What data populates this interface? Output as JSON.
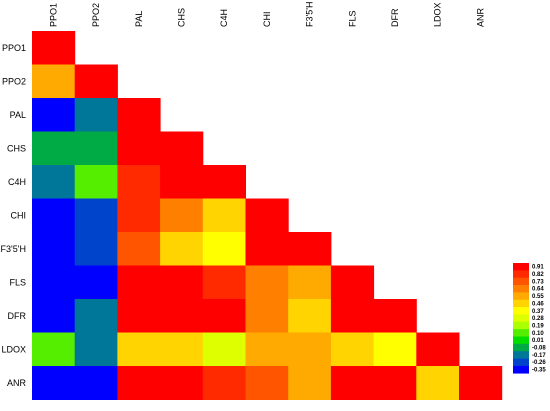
{
  "chart_data": {
    "type": "heatmap",
    "title": "",
    "xlabel": "",
    "ylabel": "",
    "shape": "lower-triangle",
    "grid": false,
    "legend_position": "bottom-right",
    "genes": [
      "PPO1",
      "PPO2",
      "PAL",
      "CHS",
      "C4H",
      "CHI",
      "F3'5'H",
      "FLS",
      "DFR",
      "LDOX",
      "ANR"
    ],
    "matrix": [
      [
        0.91
      ],
      [
        0.55,
        0.91
      ],
      [
        -0.35,
        -0.17,
        0.91
      ],
      [
        -0.08,
        -0.08,
        0.91,
        0.91
      ],
      [
        -0.17,
        0.1,
        0.82,
        0.91,
        0.91
      ],
      [
        -0.35,
        -0.26,
        0.82,
        0.64,
        0.46,
        0.91
      ],
      [
        -0.35,
        -0.26,
        0.73,
        0.46,
        0.37,
        0.91,
        0.91
      ],
      [
        -0.35,
        -0.35,
        0.91,
        0.91,
        0.82,
        0.64,
        0.55,
        0.91
      ],
      [
        -0.35,
        -0.17,
        0.91,
        0.91,
        0.91,
        0.64,
        0.46,
        0.91,
        0.91
      ],
      [
        0.1,
        -0.17,
        0.46,
        0.46,
        0.28,
        0.55,
        0.55,
        0.46,
        0.37,
        0.91
      ],
      [
        -0.35,
        -0.35,
        0.91,
        0.91,
        0.82,
        0.73,
        0.55,
        0.91,
        0.91,
        0.46,
        0.91
      ]
    ],
    "legend": {
      "labels": [
        "0.91",
        "0.82",
        "0.73",
        "0.64",
        "0.55",
        "0.46",
        "0.37",
        "0.28",
        "0.19",
        "0.10",
        "0.01",
        "-0.08",
        "-0.17",
        "-0.26",
        "-0.35"
      ],
      "colors": [
        "#ff0000",
        "#ff2a00",
        "#ff5500",
        "#ff8000",
        "#ffaa00",
        "#ffd400",
        "#ffff00",
        "#ddff00",
        "#aaff00",
        "#55ee00",
        "#00dd00",
        "#00aa44",
        "#007799",
        "#0044cc",
        "#0000ff"
      ]
    }
  }
}
